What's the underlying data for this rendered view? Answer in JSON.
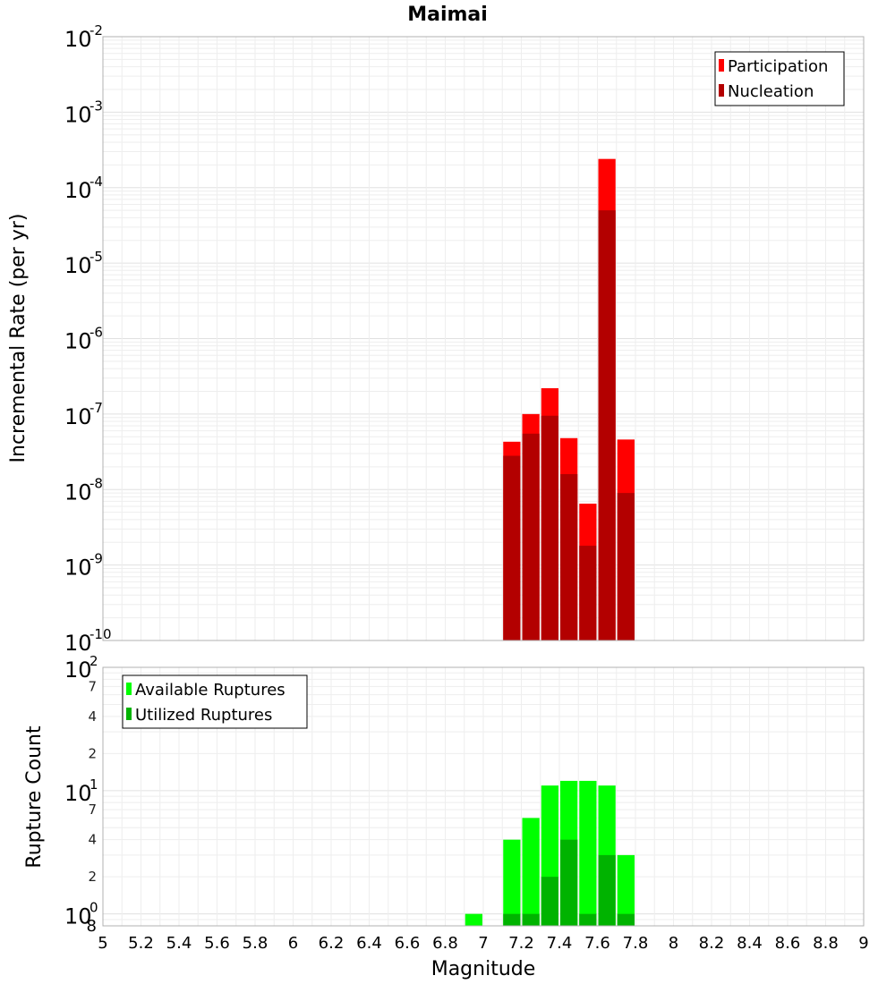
{
  "colors": {
    "participation": "#ff0000",
    "nucleation": "#b30000",
    "available": "#00ff00",
    "utilized": "#00b300",
    "grid": "#e6e6e6",
    "plot_border": "#b0b0b0"
  },
  "chart_data": [
    {
      "type": "bar",
      "title": "Maimai",
      "xlabel": "",
      "ylabel": "Incremental Rate (per yr)",
      "y_scale": "log",
      "ylim": [
        1e-10,
        0.01
      ],
      "xlim": [
        5,
        9
      ],
      "grid": true,
      "legend_position": "top-right",
      "bin_width": 0.1,
      "x": [
        7.15,
        7.25,
        7.35,
        7.45,
        7.55,
        7.65,
        7.75
      ],
      "series": [
        {
          "name": "Participation",
          "values": [
            4.3e-08,
            1e-07,
            2.2e-07,
            4.8e-08,
            6.5e-09,
            0.00024,
            4.6e-08
          ]
        },
        {
          "name": "Nucleation",
          "values": [
            2.8e-08,
            5.5e-08,
            9.5e-08,
            1.6e-08,
            1.8e-09,
            5e-05,
            9e-09
          ]
        }
      ],
      "y_ticks": [
        {
          "base": "10",
          "exp": "-2"
        },
        {
          "base": "10",
          "exp": "-3"
        },
        {
          "base": "10",
          "exp": "-4"
        },
        {
          "base": "10",
          "exp": "-5"
        },
        {
          "base": "10",
          "exp": "-6"
        },
        {
          "base": "10",
          "exp": "-7"
        },
        {
          "base": "10",
          "exp": "-8"
        },
        {
          "base": "10",
          "exp": "-9"
        },
        {
          "base": "10",
          "exp": "-10"
        }
      ]
    },
    {
      "type": "bar",
      "title": "",
      "xlabel": "Magnitude",
      "ylabel": "Rupture Count",
      "y_scale": "log",
      "ylim": [
        0.8,
        100
      ],
      "xlim": [
        5,
        9
      ],
      "grid": true,
      "legend_position": "top-left",
      "bin_width": 0.1,
      "x": [
        6.95,
        7.15,
        7.25,
        7.35,
        7.45,
        7.55,
        7.65,
        7.75
      ],
      "series": [
        {
          "name": "Available Ruptures",
          "values": [
            1,
            4,
            6,
            11,
            12,
            12,
            11,
            3
          ]
        },
        {
          "name": "Utilized Ruptures",
          "values": [
            0,
            1,
            1,
            2,
            4,
            1,
            3,
            1
          ]
        }
      ],
      "y_ticks": [
        {
          "base": "10",
          "exp": "2"
        },
        {
          "base": "10",
          "exp": "1"
        },
        {
          "base": "10",
          "exp": "0"
        }
      ],
      "y_minor_ticks": [
        "7",
        "4",
        "2",
        "7",
        "4",
        "2",
        "8"
      ]
    }
  ],
  "x_ticks": [
    "5",
    "5.2",
    "5.4",
    "5.6",
    "5.8",
    "6",
    "6.2",
    "6.4",
    "6.6",
    "6.8",
    "7",
    "7.2",
    "7.4",
    "7.6",
    "7.8",
    "8",
    "8.2",
    "8.4",
    "8.6",
    "8.8",
    "9"
  ]
}
